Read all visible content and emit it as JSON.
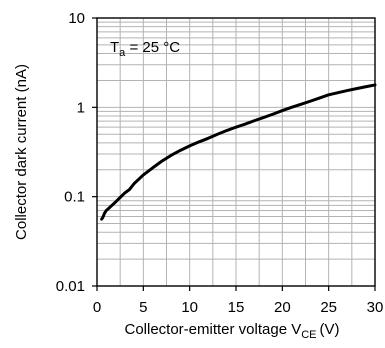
{
  "chart_data": {
    "type": "line",
    "title": "",
    "xlabel": "Collector-emitter voltage V",
    "xlabel_subscript": "CE",
    "xlabel_unit": "(V)",
    "ylabel": "Collector dark current (nA)",
    "annotation": {
      "prefix": "T",
      "subscript": "a",
      "suffix": " = 25 °C"
    },
    "xlim": [
      0,
      30
    ],
    "ylim": [
      0.01,
      10
    ],
    "y_scale": "log",
    "grid": true,
    "x_ticks": [
      0,
      5,
      10,
      15,
      20,
      25,
      30
    ],
    "x_tick_labels": [
      "0",
      "5",
      "10",
      "15",
      "20",
      "25",
      "30"
    ],
    "y_ticks": [
      0.01,
      0.1,
      1,
      10
    ],
    "y_tick_labels": [
      "0.01",
      "0.1",
      "1",
      "10"
    ],
    "series": [
      {
        "x": [
          0.5,
          0.6,
          0.7,
          0.8,
          1.0,
          1.2,
          1.5,
          2.0,
          2.5,
          3.0,
          3.5,
          4.0,
          5,
          6,
          7,
          8,
          9,
          10,
          11,
          12,
          13,
          14,
          15,
          16,
          17,
          18,
          19,
          20,
          21,
          22,
          23,
          24,
          25,
          26,
          27,
          28,
          29,
          30
        ],
        "y": [
          0.056,
          0.058,
          0.061,
          0.065,
          0.07,
          0.073,
          0.078,
          0.087,
          0.098,
          0.11,
          0.12,
          0.14,
          0.175,
          0.21,
          0.25,
          0.29,
          0.33,
          0.37,
          0.41,
          0.45,
          0.5,
          0.55,
          0.6,
          0.65,
          0.71,
          0.77,
          0.84,
          0.92,
          1.0,
          1.08,
          1.17,
          1.27,
          1.38,
          1.46,
          1.54,
          1.62,
          1.7,
          1.78
        ]
      }
    ],
    "colors": {
      "line": "#000000",
      "grid": "#b3b3b3",
      "axis": "#000000"
    }
  }
}
